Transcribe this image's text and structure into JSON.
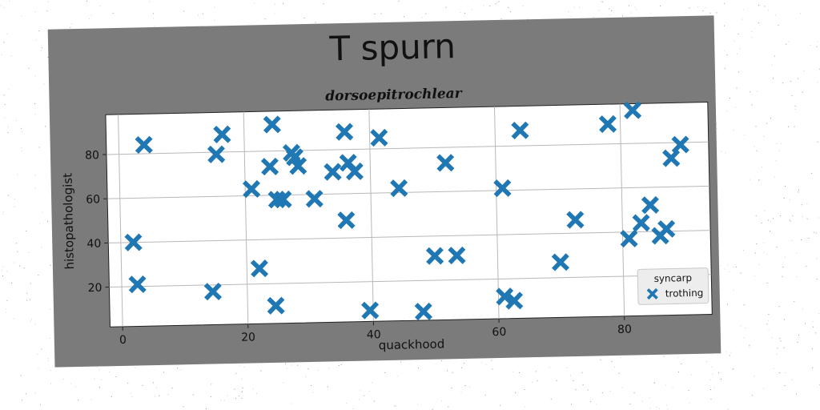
{
  "chart_data": {
    "type": "scatter",
    "title": "T spurn",
    "subtitle": "dorsoepitrochlear",
    "xlabel": "quackhood",
    "ylabel": "histopathologist",
    "xlim": [
      -2,
      94
    ],
    "ylim": [
      2,
      98
    ],
    "xticks": [
      0,
      20,
      40,
      60,
      80
    ],
    "yticks": [
      20,
      40,
      60,
      80
    ],
    "grid": true,
    "legend": {
      "title": "syncarp",
      "placement": "lower-right"
    },
    "marker": "X",
    "color": "#1f77b4",
    "series": [
      {
        "name": "trothing",
        "points": [
          [
            2,
            40
          ],
          [
            2.5,
            21
          ],
          [
            4,
            84
          ],
          [
            14.5,
            17
          ],
          [
            15.5,
            79
          ],
          [
            16.5,
            88
          ],
          [
            21,
            63
          ],
          [
            22,
            27
          ],
          [
            24,
            73
          ],
          [
            24.5,
            92
          ],
          [
            24.5,
            10
          ],
          [
            25,
            58
          ],
          [
            26,
            58
          ],
          [
            27.5,
            79
          ],
          [
            28,
            77
          ],
          [
            28.5,
            73
          ],
          [
            31,
            58
          ],
          [
            34,
            70
          ],
          [
            36,
            48
          ],
          [
            36,
            88
          ],
          [
            36.5,
            74
          ],
          [
            37.5,
            70
          ],
          [
            39.5,
            7
          ],
          [
            41.5,
            85
          ],
          [
            44.5,
            62
          ],
          [
            48,
            6
          ],
          [
            50,
            31
          ],
          [
            52,
            73
          ],
          [
            53.5,
            31
          ],
          [
            61,
            61
          ],
          [
            61,
            12
          ],
          [
            62.5,
            10
          ],
          [
            64,
            87
          ],
          [
            70,
            27
          ],
          [
            72.5,
            46
          ],
          [
            78,
            89
          ],
          [
            81,
            37
          ],
          [
            82,
            95
          ],
          [
            83,
            44
          ],
          [
            84.5,
            52
          ],
          [
            86,
            38
          ],
          [
            87,
            41
          ],
          [
            88,
            73
          ],
          [
            89.5,
            79
          ]
        ]
      }
    ]
  }
}
